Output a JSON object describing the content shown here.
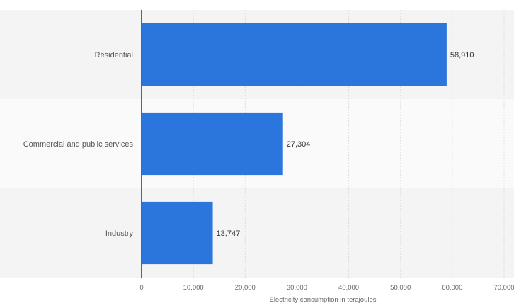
{
  "chart_data": {
    "type": "bar",
    "orientation": "horizontal",
    "categories": [
      "Residential",
      "Commercial and public services",
      "Industry"
    ],
    "values": [
      58910,
      27304,
      13747
    ],
    "value_labels": [
      "58,910",
      "27,304",
      "13,747"
    ],
    "xlabel": "Electricity consumption in terajoules",
    "ylabel": "",
    "xlim": [
      0,
      70000
    ],
    "xticks": [
      0,
      10000,
      20000,
      30000,
      40000,
      50000,
      60000,
      70000
    ],
    "xtick_labels": [
      "0",
      "10,000",
      "20,000",
      "30,000",
      "40,000",
      "50,000",
      "60,000",
      "70,000"
    ],
    "grid": true,
    "colors": {
      "bar": "#2a76dd",
      "band_dark": "#f4f4f4",
      "band_light": "#fafafa",
      "grid": "#dcdcdc",
      "text": "#555555",
      "axis": "#333333"
    }
  }
}
